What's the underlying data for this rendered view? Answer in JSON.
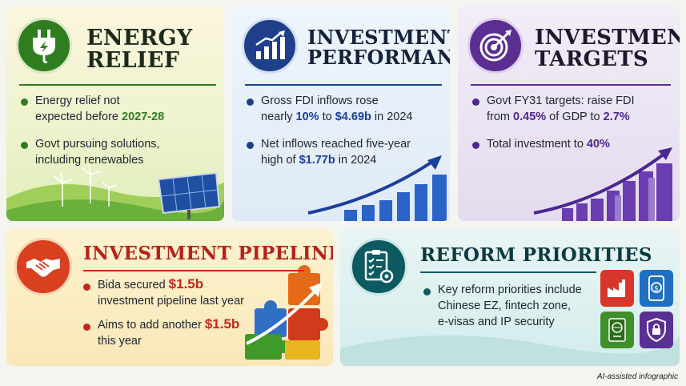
{
  "colors": {
    "energy": "#2f7d1f",
    "investment": "#1f3f8a",
    "targets": "#5b2e91",
    "pipeline": "#c4261d",
    "reform": "#0d5a62",
    "accent_blue": "#1b3f9c",
    "accent_purple": "#4b2790",
    "accent_red": "#c4261d"
  },
  "energy": {
    "title1": "ENERGY",
    "title2": "RELIEF",
    "icon": "plug-icon",
    "b1a": "Energy relief not",
    "b1b": "expected before ",
    "b1c": "2027-28",
    "b2a": "Govt pursuing solutions,",
    "b2b": "including renewables"
  },
  "investment": {
    "title1": "INVESTMENT",
    "title2": "PERFORMANCE",
    "icon": "bar-chart-up-icon",
    "b1a": "Gross FDI inflows rose",
    "b1b": "nearly ",
    "b1c": "10%",
    "b1d": " to ",
    "b1e": "$4.69b",
    "b1f": " in 2024",
    "b2a": "Net inflows reached five-year",
    "b2b": "high of ",
    "b2c": "$1.77b",
    "b2d": " in 2024"
  },
  "targets": {
    "title1": "INVESTMENT",
    "title2": "TARGETS",
    "icon": "target-icon",
    "b1a": "Govt FY31 targets: raise FDI",
    "b1b": "from ",
    "b1c": "0.45%",
    "b1d": " of GDP to ",
    "b1e": "2.7%",
    "b2a": "Total investment to ",
    "b2b": "40%"
  },
  "pipeline": {
    "title": "INVESTMENT PIPELINE",
    "icon": "handshake-icon",
    "b1a": "Bida secured ",
    "b1b": "$1.5b",
    "b1c": "investment pipeline last year",
    "b2a": "Aims to add another ",
    "b2b": "$1.5b",
    "b2c": "this year"
  },
  "reform": {
    "title": "REFORM PRIORITIES",
    "icon": "checklist-gear-icon",
    "b1a": "Key reform priorities include",
    "b1b": "Chinese EZ, fintech zone,",
    "b1c": "e-visas and IP security"
  },
  "footer": "AI-assisted infographic"
}
